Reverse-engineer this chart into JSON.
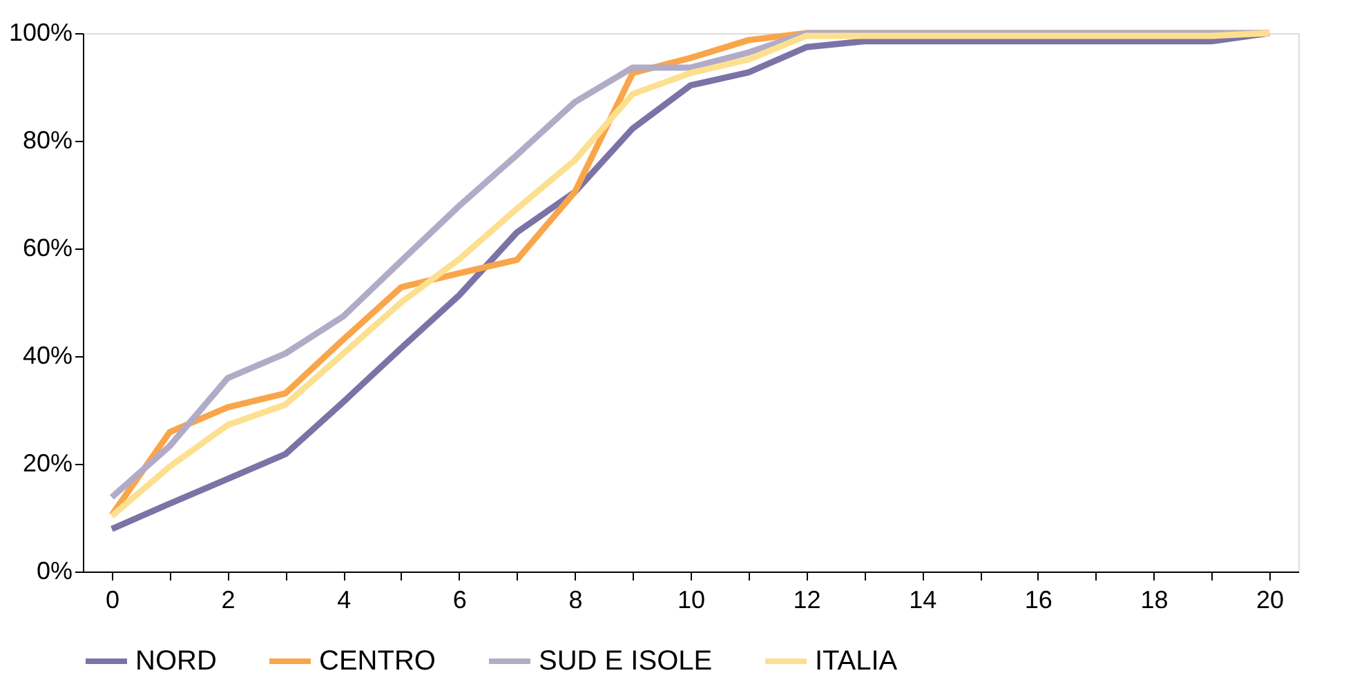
{
  "chart_data": {
    "type": "line",
    "categories": [
      "0",
      null,
      "2",
      null,
      "4",
      null,
      "6",
      null,
      "8",
      null,
      "10",
      null,
      "12",
      null,
      "14",
      null,
      "16",
      null,
      "18",
      null,
      "20"
    ],
    "series": [
      {
        "name": "NORD",
        "color": "#7b72a6",
        "values": [
          7.9,
          12.6,
          17.2,
          21.8,
          31.5,
          41.5,
          51.3,
          63,
          70.5,
          82.3,
          90.3,
          92.7,
          97.4,
          98.5,
          98.5,
          98.5,
          98.5,
          98.5,
          98.5,
          98.5,
          100
        ]
      },
      {
        "name": "CENTRO",
        "color": "#f9a54a",
        "values": [
          10.5,
          25.9,
          30.5,
          33.1,
          43.1,
          52.8,
          55.4,
          57.9,
          70.5,
          92.6,
          95.4,
          98.7,
          100,
          100,
          100,
          100,
          100,
          100,
          100,
          100,
          100
        ]
      },
      {
        "name": "SUD E ISOLE",
        "color": "#b2abc7",
        "values": [
          13.8,
          23.3,
          35.9,
          40.5,
          47.4,
          57.7,
          67.9,
          77.4,
          87.2,
          93.6,
          93.6,
          96.4,
          100,
          100,
          100,
          100,
          100,
          100,
          100,
          100,
          100
        ]
      },
      {
        "name": "ITALIA",
        "color": "#fde08f",
        "values": [
          10.3,
          19.5,
          27.2,
          31,
          40.5,
          50,
          58,
          67.4,
          76.4,
          88.7,
          92.6,
          95.1,
          99.5,
          99.5,
          99.5,
          99.5,
          99.5,
          99.5,
          99.5,
          99.5,
          100
        ]
      }
    ],
    "ylim": [
      0,
      100
    ],
    "yticks": [
      {
        "value": 0,
        "label": "0%"
      },
      {
        "value": 20,
        "label": "20%"
      },
      {
        "value": 40,
        "label": "40%"
      },
      {
        "value": 60,
        "label": "60%"
      },
      {
        "value": 80,
        "label": "80%"
      },
      {
        "value": 100,
        "label": "100%"
      }
    ],
    "grid": false,
    "legend": "bottom",
    "marker": "none",
    "line_style": "solid"
  }
}
